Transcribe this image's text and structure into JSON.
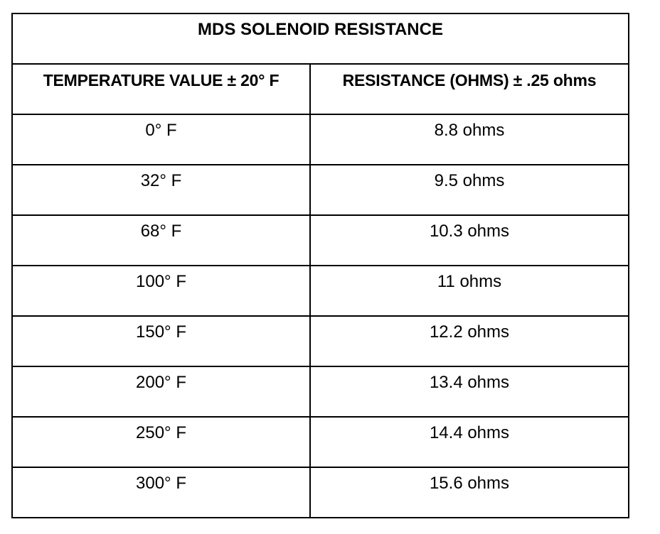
{
  "table": {
    "title": "MDS SOLENOID RESISTANCE",
    "headers": [
      "TEMPERATURE VALUE ± 20° F",
      "RESISTANCE (OHMS) ± .25 ohms"
    ],
    "rows": [
      [
        "0° F",
        "8.8 ohms"
      ],
      [
        "32° F",
        "9.5 ohms"
      ],
      [
        "68° F",
        "10.3 ohms"
      ],
      [
        "100° F",
        "11 ohms"
      ],
      [
        "150° F",
        "12.2 ohms"
      ],
      [
        "200° F",
        "13.4 ohms"
      ],
      [
        "250° F",
        "14.4 ohms"
      ],
      [
        "300° F",
        "15.6 ohms"
      ]
    ]
  }
}
